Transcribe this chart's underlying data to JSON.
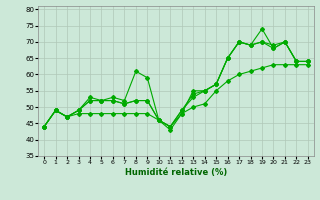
{
  "xlabel": "Humidité relative (%)",
  "xlim": [
    -0.5,
    23.5
  ],
  "ylim": [
    35,
    81
  ],
  "yticks": [
    35,
    40,
    45,
    50,
    55,
    60,
    65,
    70,
    75,
    80
  ],
  "xticks": [
    0,
    1,
    2,
    3,
    4,
    5,
    6,
    7,
    8,
    9,
    10,
    11,
    12,
    13,
    14,
    15,
    16,
    17,
    18,
    19,
    20,
    21,
    22,
    23
  ],
  "bg_color": "#cce8d8",
  "grid_color": "#b0c8b8",
  "line_color": "#00aa00",
  "series": [
    [
      44,
      49,
      47,
      49,
      53,
      52,
      53,
      52,
      61,
      59,
      46,
      43,
      48,
      55,
      55,
      57,
      65,
      70,
      69,
      74,
      68,
      70,
      64,
      64
    ],
    [
      44,
      49,
      47,
      49,
      52,
      52,
      52,
      51,
      52,
      52,
      46,
      44,
      49,
      53,
      55,
      57,
      65,
      70,
      69,
      70,
      69,
      70,
      64,
      64
    ],
    [
      44,
      49,
      47,
      49,
      52,
      52,
      52,
      51,
      52,
      52,
      46,
      44,
      49,
      54,
      55,
      57,
      65,
      70,
      69,
      70,
      68,
      70,
      64,
      64
    ],
    [
      44,
      49,
      47,
      48,
      48,
      48,
      48,
      48,
      48,
      48,
      46,
      44,
      48,
      50,
      51,
      55,
      58,
      60,
      61,
      62,
      63,
      63,
      63,
      63
    ]
  ]
}
